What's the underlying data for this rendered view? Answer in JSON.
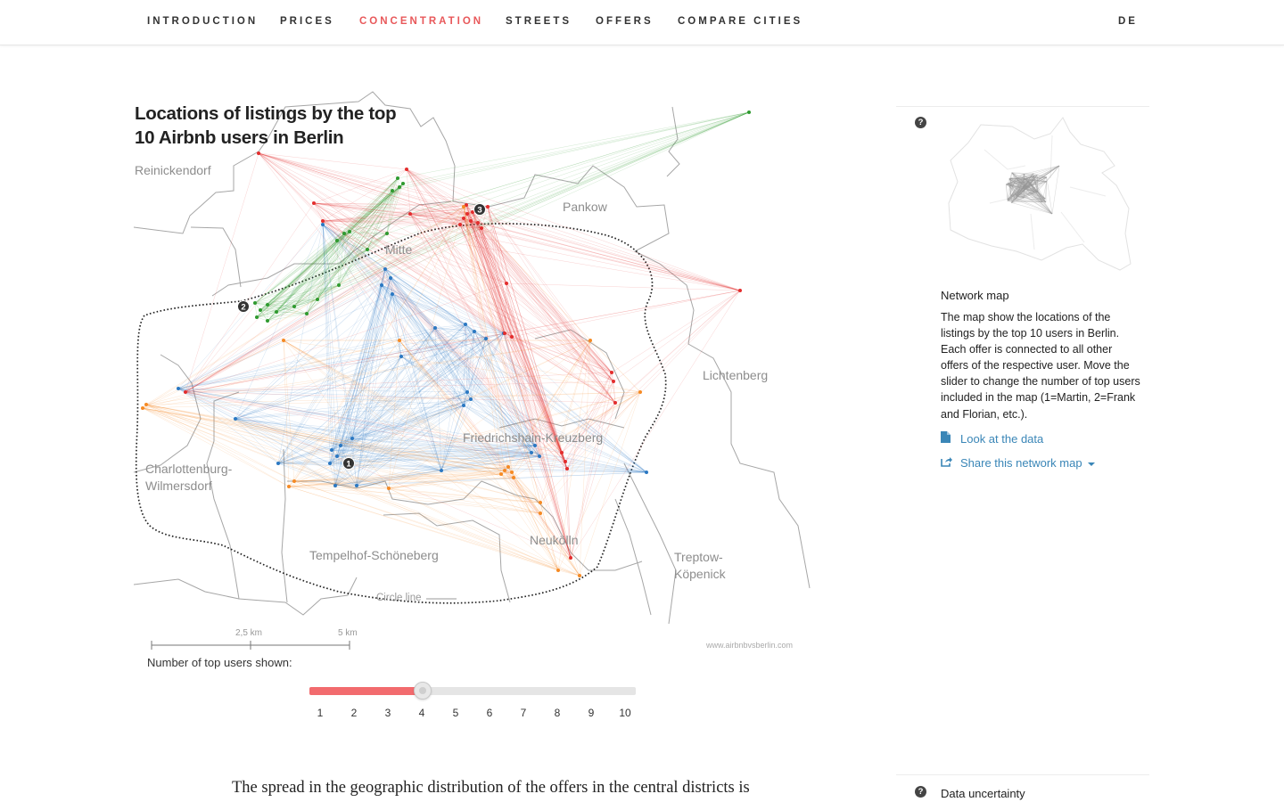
{
  "nav": {
    "items": [
      "INTRODUCTION",
      "PRICES",
      "CONCENTRATION",
      "STREETS",
      "OFFERS",
      "COMPARE CITIES"
    ],
    "active": "CONCENTRATION",
    "language": "DE"
  },
  "map": {
    "title": "Locations of listings by the top 10 Airbnb users in Berlin",
    "districts": [
      "Reinickendorf",
      "Pankow",
      "Mitte",
      "Lichtenberg",
      "Friedrichshain-Kreuzberg",
      "Charlottenburg-Wilmersdorf",
      "Neukölln",
      "Tempelhof-Schöneberg",
      "Treptow-Köpenick"
    ],
    "circle_line_label": "Circle line",
    "scale": {
      "mid": "2,5 km",
      "end": "5 km"
    },
    "credit": "www.airbnbvsberlin.com",
    "user_markers": [
      "1",
      "2",
      "3"
    ],
    "colors": {
      "user1": "#2b78c2",
      "user2": "#2f9a2f",
      "user3": "#e32d2d",
      "user4": "#f58a24"
    }
  },
  "slider": {
    "label": "Number of top users shown:",
    "min": 1,
    "max": 10,
    "value": 4,
    "ticks": [
      "1",
      "2",
      "3",
      "4",
      "5",
      "6",
      "7",
      "8",
      "9",
      "10"
    ],
    "fill_color": "#f26b6e"
  },
  "sidebar": {
    "title": "Network map",
    "description": "The map show the locations of the listings by the top 10 users in Berlin. Each offer is connected to all other offers of the respective user. Move the slider to change the number of top users included in the map (1=Martin, 2=Frank and Florian, etc.).",
    "link_data": "Look at the data",
    "link_share": "Share this network map",
    "data_uncertainty": "Data uncertainty",
    "help_icon": "?"
  },
  "article": {
    "text": "The spread in the geographic distribution of the offers in the central districts is"
  }
}
